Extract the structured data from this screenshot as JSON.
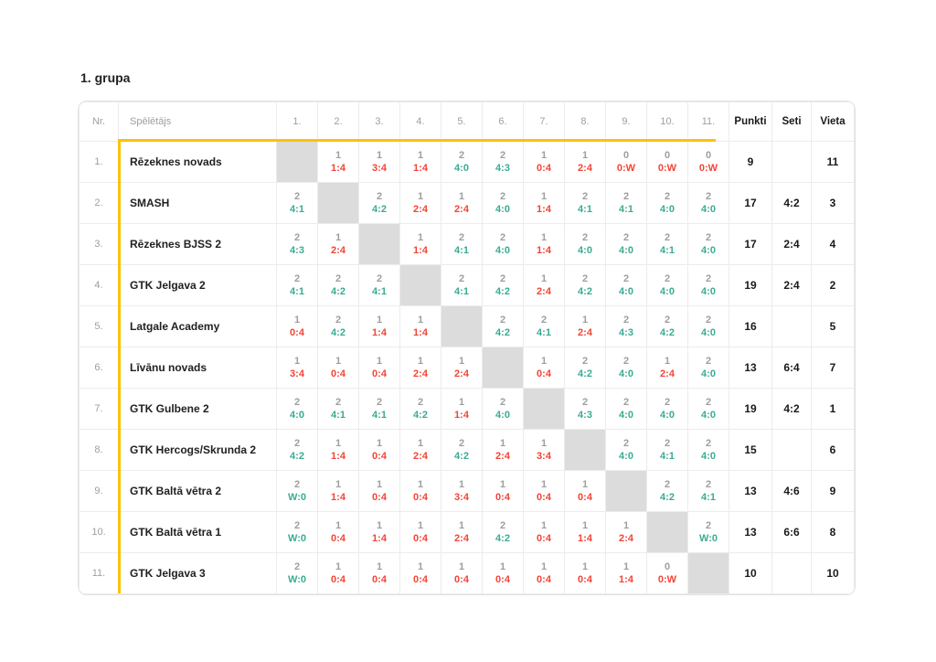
{
  "page": {
    "title": "1. grupa"
  },
  "colors": {
    "win": "#3aab93",
    "loss": "#f44336",
    "highlight": "#ffc107",
    "diagonal": "#dcdcdc"
  },
  "table": {
    "headers": {
      "nr": "Nr.",
      "player": "Spēlētājs",
      "rounds": [
        "1.",
        "2.",
        "3.",
        "4.",
        "5.",
        "6.",
        "7.",
        "8.",
        "9.",
        "10.",
        "11."
      ],
      "points": "Punkti",
      "sets": "Seti",
      "place": "Vieta"
    },
    "rows": [
      {
        "nr": "1.",
        "player": "Rēzeknes novads",
        "results": [
          null,
          {
            "pts": "1",
            "score": "1:4",
            "outcome": "loss"
          },
          {
            "pts": "1",
            "score": "3:4",
            "outcome": "loss"
          },
          {
            "pts": "1",
            "score": "1:4",
            "outcome": "loss"
          },
          {
            "pts": "2",
            "score": "4:0",
            "outcome": "win"
          },
          {
            "pts": "2",
            "score": "4:3",
            "outcome": "win"
          },
          {
            "pts": "1",
            "score": "0:4",
            "outcome": "loss"
          },
          {
            "pts": "1",
            "score": "2:4",
            "outcome": "loss"
          },
          {
            "pts": "0",
            "score": "0:W",
            "outcome": "loss"
          },
          {
            "pts": "0",
            "score": "0:W",
            "outcome": "loss"
          },
          {
            "pts": "0",
            "score": "0:W",
            "outcome": "loss"
          }
        ],
        "points": "9",
        "sets": "",
        "place": "11"
      },
      {
        "nr": "2.",
        "player": "SMASH",
        "results": [
          {
            "pts": "2",
            "score": "4:1",
            "outcome": "win"
          },
          null,
          {
            "pts": "2",
            "score": "4:2",
            "outcome": "win"
          },
          {
            "pts": "1",
            "score": "2:4",
            "outcome": "loss"
          },
          {
            "pts": "1",
            "score": "2:4",
            "outcome": "loss"
          },
          {
            "pts": "2",
            "score": "4:0",
            "outcome": "win"
          },
          {
            "pts": "1",
            "score": "1:4",
            "outcome": "loss"
          },
          {
            "pts": "2",
            "score": "4:1",
            "outcome": "win"
          },
          {
            "pts": "2",
            "score": "4:1",
            "outcome": "win"
          },
          {
            "pts": "2",
            "score": "4:0",
            "outcome": "win"
          },
          {
            "pts": "2",
            "score": "4:0",
            "outcome": "win"
          }
        ],
        "points": "17",
        "sets": "4:2",
        "place": "3"
      },
      {
        "nr": "3.",
        "player": "Rēzeknes BJSS 2",
        "results": [
          {
            "pts": "2",
            "score": "4:3",
            "outcome": "win"
          },
          {
            "pts": "1",
            "score": "2:4",
            "outcome": "loss"
          },
          null,
          {
            "pts": "1",
            "score": "1:4",
            "outcome": "loss"
          },
          {
            "pts": "2",
            "score": "4:1",
            "outcome": "win"
          },
          {
            "pts": "2",
            "score": "4:0",
            "outcome": "win"
          },
          {
            "pts": "1",
            "score": "1:4",
            "outcome": "loss"
          },
          {
            "pts": "2",
            "score": "4:0",
            "outcome": "win"
          },
          {
            "pts": "2",
            "score": "4:0",
            "outcome": "win"
          },
          {
            "pts": "2",
            "score": "4:1",
            "outcome": "win"
          },
          {
            "pts": "2",
            "score": "4:0",
            "outcome": "win"
          }
        ],
        "points": "17",
        "sets": "2:4",
        "place": "4"
      },
      {
        "nr": "4.",
        "player": "GTK Jelgava 2",
        "results": [
          {
            "pts": "2",
            "score": "4:1",
            "outcome": "win"
          },
          {
            "pts": "2",
            "score": "4:2",
            "outcome": "win"
          },
          {
            "pts": "2",
            "score": "4:1",
            "outcome": "win"
          },
          null,
          {
            "pts": "2",
            "score": "4:1",
            "outcome": "win"
          },
          {
            "pts": "2",
            "score": "4:2",
            "outcome": "win"
          },
          {
            "pts": "1",
            "score": "2:4",
            "outcome": "loss"
          },
          {
            "pts": "2",
            "score": "4:2",
            "outcome": "win"
          },
          {
            "pts": "2",
            "score": "4:0",
            "outcome": "win"
          },
          {
            "pts": "2",
            "score": "4:0",
            "outcome": "win"
          },
          {
            "pts": "2",
            "score": "4:0",
            "outcome": "win"
          }
        ],
        "points": "19",
        "sets": "2:4",
        "place": "2"
      },
      {
        "nr": "5.",
        "player": "Latgale Academy",
        "results": [
          {
            "pts": "1",
            "score": "0:4",
            "outcome": "loss"
          },
          {
            "pts": "2",
            "score": "4:2",
            "outcome": "win"
          },
          {
            "pts": "1",
            "score": "1:4",
            "outcome": "loss"
          },
          {
            "pts": "1",
            "score": "1:4",
            "outcome": "loss"
          },
          null,
          {
            "pts": "2",
            "score": "4:2",
            "outcome": "win"
          },
          {
            "pts": "2",
            "score": "4:1",
            "outcome": "win"
          },
          {
            "pts": "1",
            "score": "2:4",
            "outcome": "loss"
          },
          {
            "pts": "2",
            "score": "4:3",
            "outcome": "win"
          },
          {
            "pts": "2",
            "score": "4:2",
            "outcome": "win"
          },
          {
            "pts": "2",
            "score": "4:0",
            "outcome": "win"
          }
        ],
        "points": "16",
        "sets": "",
        "place": "5"
      },
      {
        "nr": "6.",
        "player": "Līvānu novads",
        "results": [
          {
            "pts": "1",
            "score": "3:4",
            "outcome": "loss"
          },
          {
            "pts": "1",
            "score": "0:4",
            "outcome": "loss"
          },
          {
            "pts": "1",
            "score": "0:4",
            "outcome": "loss"
          },
          {
            "pts": "1",
            "score": "2:4",
            "outcome": "loss"
          },
          {
            "pts": "1",
            "score": "2:4",
            "outcome": "loss"
          },
          null,
          {
            "pts": "1",
            "score": "0:4",
            "outcome": "loss"
          },
          {
            "pts": "2",
            "score": "4:2",
            "outcome": "win"
          },
          {
            "pts": "2",
            "score": "4:0",
            "outcome": "win"
          },
          {
            "pts": "1",
            "score": "2:4",
            "outcome": "loss"
          },
          {
            "pts": "2",
            "score": "4:0",
            "outcome": "win"
          }
        ],
        "points": "13",
        "sets": "6:4",
        "place": "7"
      },
      {
        "nr": "7.",
        "player": "GTK Gulbene 2",
        "results": [
          {
            "pts": "2",
            "score": "4:0",
            "outcome": "win"
          },
          {
            "pts": "2",
            "score": "4:1",
            "outcome": "win"
          },
          {
            "pts": "2",
            "score": "4:1",
            "outcome": "win"
          },
          {
            "pts": "2",
            "score": "4:2",
            "outcome": "win"
          },
          {
            "pts": "1",
            "score": "1:4",
            "outcome": "loss"
          },
          {
            "pts": "2",
            "score": "4:0",
            "outcome": "win"
          },
          null,
          {
            "pts": "2",
            "score": "4:3",
            "outcome": "win"
          },
          {
            "pts": "2",
            "score": "4:0",
            "outcome": "win"
          },
          {
            "pts": "2",
            "score": "4:0",
            "outcome": "win"
          },
          {
            "pts": "2",
            "score": "4:0",
            "outcome": "win"
          }
        ],
        "points": "19",
        "sets": "4:2",
        "place": "1"
      },
      {
        "nr": "8.",
        "player": "GTK Hercogs/Skrunda 2",
        "results": [
          {
            "pts": "2",
            "score": "4:2",
            "outcome": "win"
          },
          {
            "pts": "1",
            "score": "1:4",
            "outcome": "loss"
          },
          {
            "pts": "1",
            "score": "0:4",
            "outcome": "loss"
          },
          {
            "pts": "1",
            "score": "2:4",
            "outcome": "loss"
          },
          {
            "pts": "2",
            "score": "4:2",
            "outcome": "win"
          },
          {
            "pts": "1",
            "score": "2:4",
            "outcome": "loss"
          },
          {
            "pts": "1",
            "score": "3:4",
            "outcome": "loss"
          },
          null,
          {
            "pts": "2",
            "score": "4:0",
            "outcome": "win"
          },
          {
            "pts": "2",
            "score": "4:1",
            "outcome": "win"
          },
          {
            "pts": "2",
            "score": "4:0",
            "outcome": "win"
          }
        ],
        "points": "15",
        "sets": "",
        "place": "6"
      },
      {
        "nr": "9.",
        "player": "GTK Baltā vētra 2",
        "results": [
          {
            "pts": "2",
            "score": "W:0",
            "outcome": "win"
          },
          {
            "pts": "1",
            "score": "1:4",
            "outcome": "loss"
          },
          {
            "pts": "1",
            "score": "0:4",
            "outcome": "loss"
          },
          {
            "pts": "1",
            "score": "0:4",
            "outcome": "loss"
          },
          {
            "pts": "1",
            "score": "3:4",
            "outcome": "loss"
          },
          {
            "pts": "1",
            "score": "0:4",
            "outcome": "loss"
          },
          {
            "pts": "1",
            "score": "0:4",
            "outcome": "loss"
          },
          {
            "pts": "1",
            "score": "0:4",
            "outcome": "loss"
          },
          null,
          {
            "pts": "2",
            "score": "4:2",
            "outcome": "win"
          },
          {
            "pts": "2",
            "score": "4:1",
            "outcome": "win"
          }
        ],
        "points": "13",
        "sets": "4:6",
        "place": "9"
      },
      {
        "nr": "10.",
        "player": "GTK Baltā vētra 1",
        "results": [
          {
            "pts": "2",
            "score": "W:0",
            "outcome": "win"
          },
          {
            "pts": "1",
            "score": "0:4",
            "outcome": "loss"
          },
          {
            "pts": "1",
            "score": "1:4",
            "outcome": "loss"
          },
          {
            "pts": "1",
            "score": "0:4",
            "outcome": "loss"
          },
          {
            "pts": "1",
            "score": "2:4",
            "outcome": "loss"
          },
          {
            "pts": "2",
            "score": "4:2",
            "outcome": "win"
          },
          {
            "pts": "1",
            "score": "0:4",
            "outcome": "loss"
          },
          {
            "pts": "1",
            "score": "1:4",
            "outcome": "loss"
          },
          {
            "pts": "1",
            "score": "2:4",
            "outcome": "loss"
          },
          null,
          {
            "pts": "2",
            "score": "W:0",
            "outcome": "win"
          }
        ],
        "points": "13",
        "sets": "6:6",
        "place": "8"
      },
      {
        "nr": "11.",
        "player": "GTK Jelgava 3",
        "results": [
          {
            "pts": "2",
            "score": "W:0",
            "outcome": "win"
          },
          {
            "pts": "1",
            "score": "0:4",
            "outcome": "loss"
          },
          {
            "pts": "1",
            "score": "0:4",
            "outcome": "loss"
          },
          {
            "pts": "1",
            "score": "0:4",
            "outcome": "loss"
          },
          {
            "pts": "1",
            "score": "0:4",
            "outcome": "loss"
          },
          {
            "pts": "1",
            "score": "0:4",
            "outcome": "loss"
          },
          {
            "pts": "1",
            "score": "0:4",
            "outcome": "loss"
          },
          {
            "pts": "1",
            "score": "0:4",
            "outcome": "loss"
          },
          {
            "pts": "1",
            "score": "1:4",
            "outcome": "loss"
          },
          {
            "pts": "0",
            "score": "0:W",
            "outcome": "loss"
          },
          null
        ],
        "points": "10",
        "sets": "",
        "place": "10"
      }
    ]
  }
}
